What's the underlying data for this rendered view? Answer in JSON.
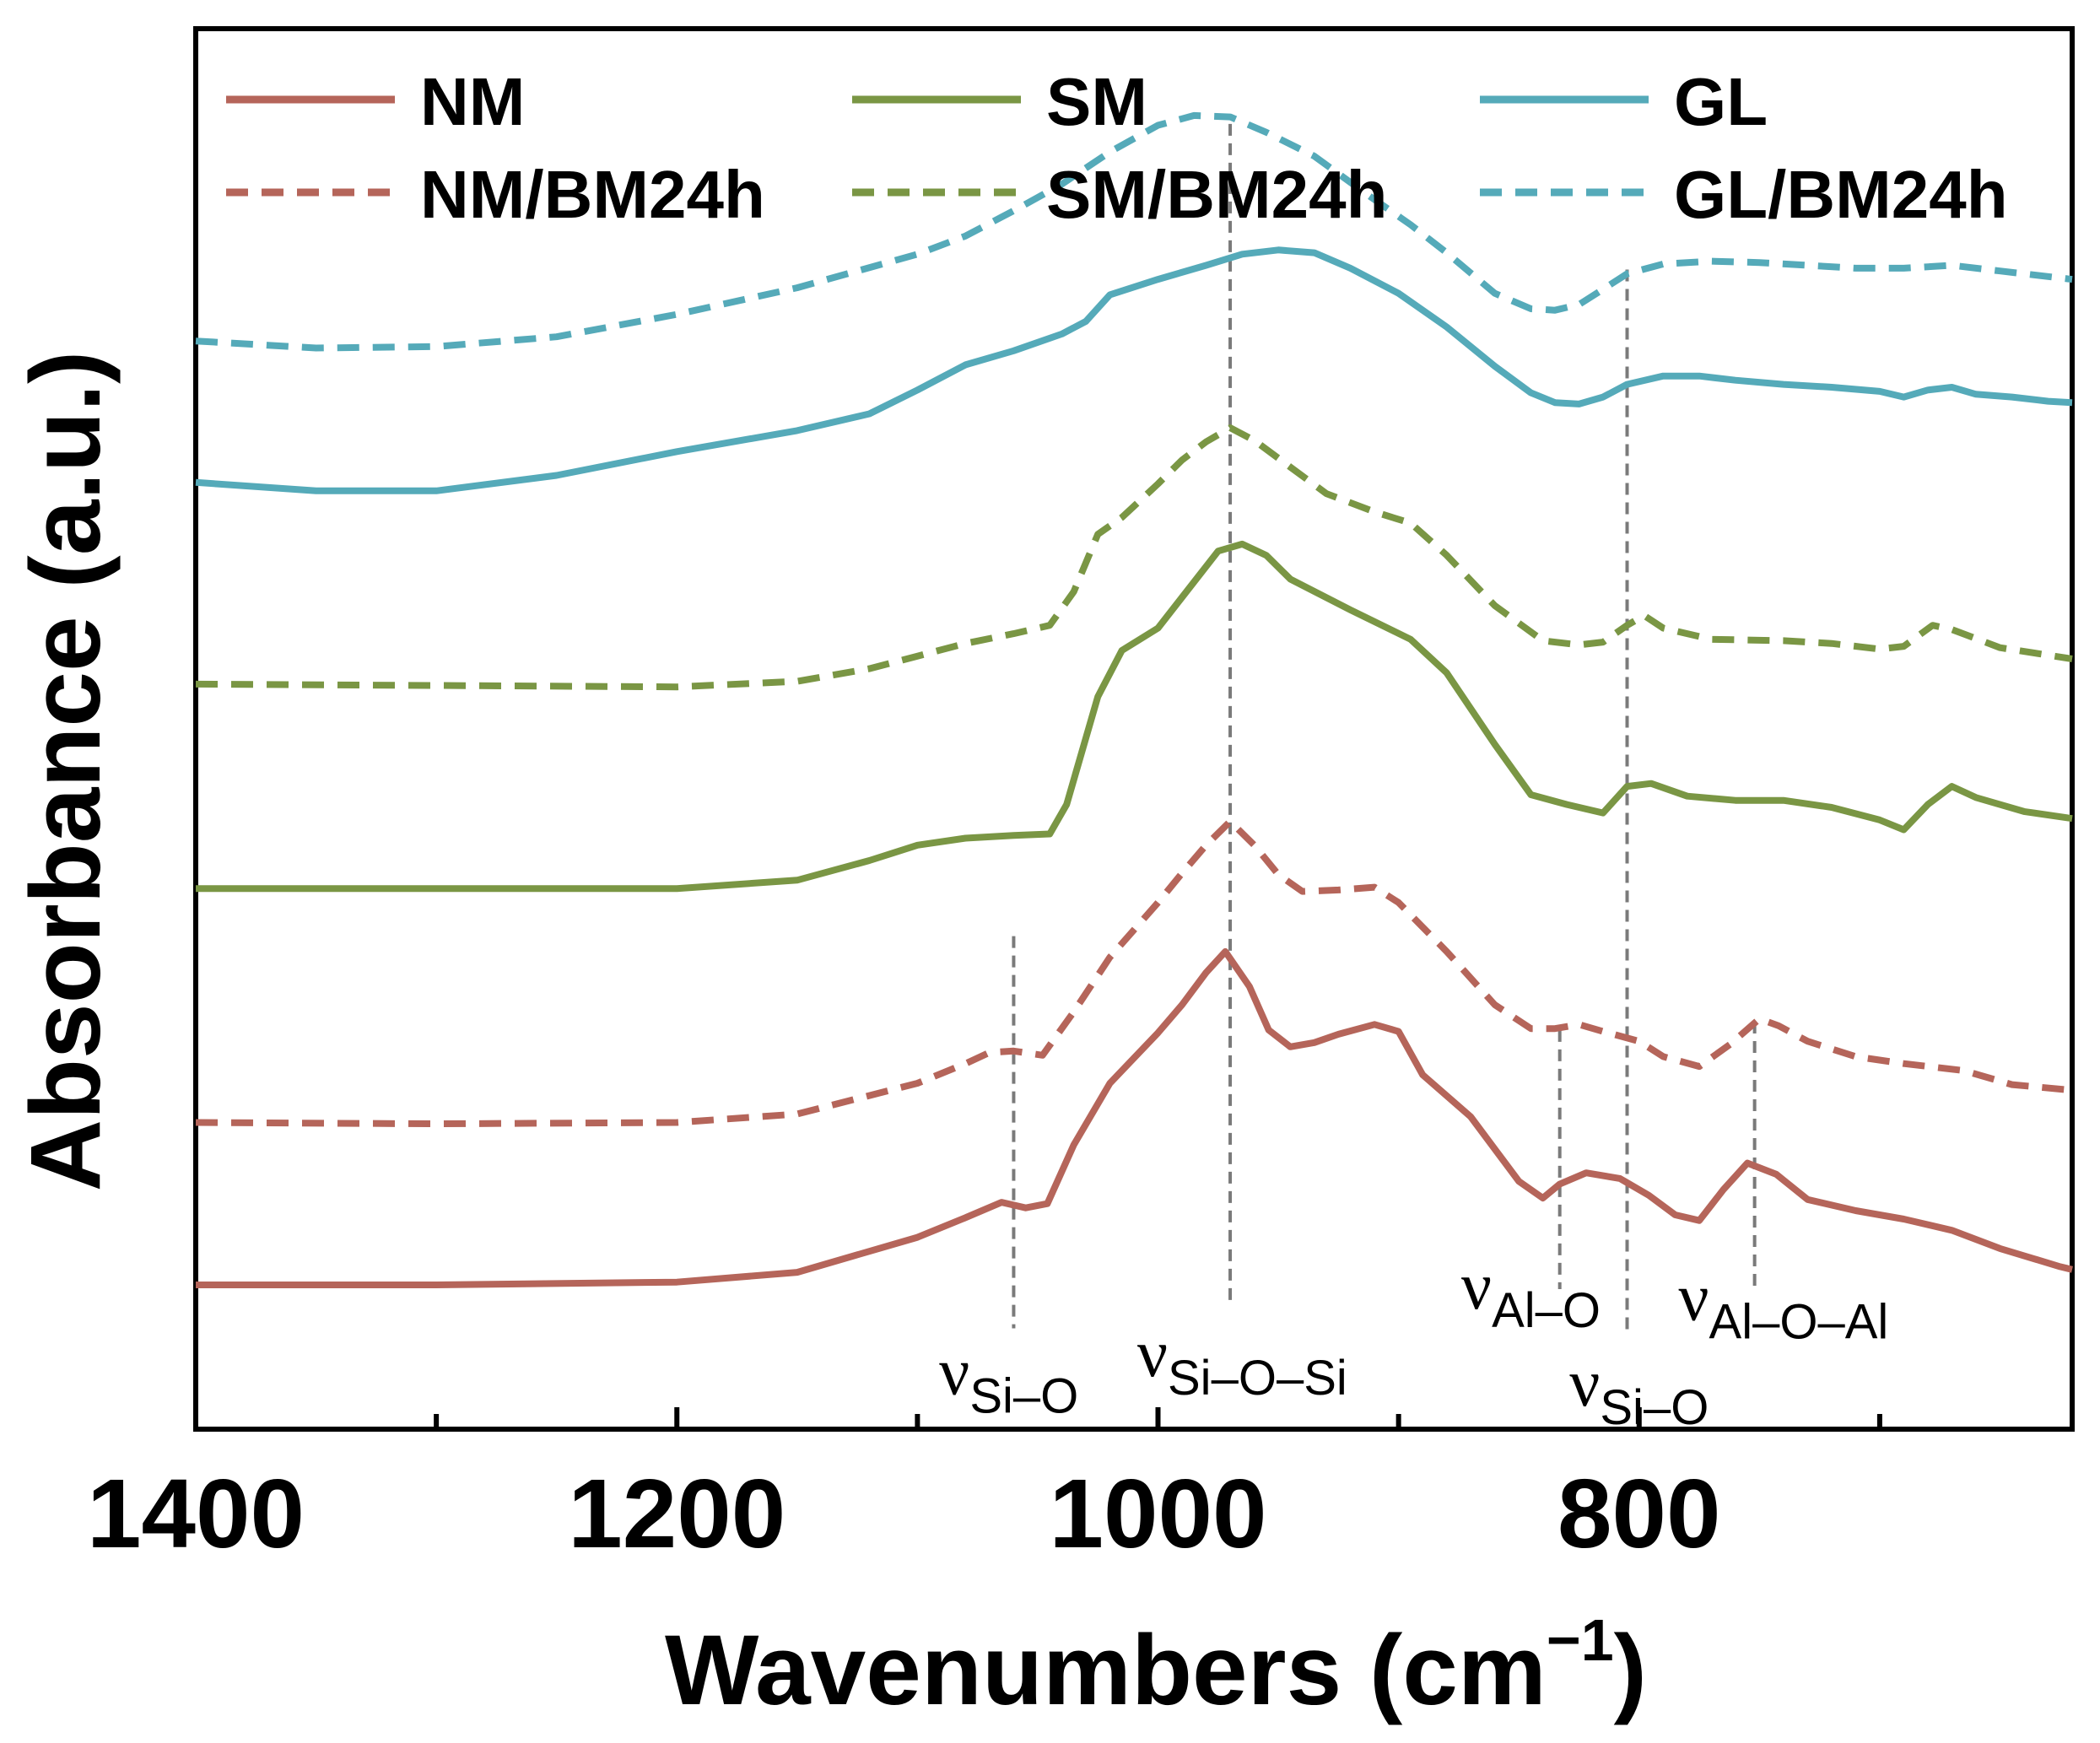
{
  "chart_data": {
    "type": "line",
    "title": "",
    "xlabel": "Wavenumbers (cm",
    "xlabel_sup": "−1",
    "xlabel_close": ")",
    "ylabel": "Absorbance (a.u.)",
    "xlim": [
      1400,
      620
    ],
    "ylim": [
      0,
      100
    ],
    "x_reversed": true,
    "x_ticks": [
      1400,
      1200,
      1000,
      800
    ],
    "x_tick_labels": [
      "1400",
      "1200",
      "1000",
      "800"
    ],
    "grid": false,
    "legend_position": "top",
    "series": [
      {
        "name": "NM",
        "color": "#b5655a",
        "style": "solid",
        "points": [
          [
            1400,
            10.3
          ],
          [
            1300,
            10.3
          ],
          [
            1200,
            10.5
          ],
          [
            1150,
            11.2
          ],
          [
            1100,
            13.7
          ],
          [
            1080,
            15.1
          ],
          [
            1065,
            16.2
          ],
          [
            1055,
            15.8
          ],
          [
            1046,
            16.1
          ],
          [
            1035,
            20.3
          ],
          [
            1020,
            24.7
          ],
          [
            1000,
            28.3
          ],
          [
            990,
            30.3
          ],
          [
            980,
            32.6
          ],
          [
            972,
            34.1
          ],
          [
            962,
            31.6
          ],
          [
            954,
            28.5
          ],
          [
            945,
            27.3
          ],
          [
            935,
            27.6
          ],
          [
            925,
            28.2
          ],
          [
            910,
            28.9
          ],
          [
            900,
            28.4
          ],
          [
            890,
            25.3
          ],
          [
            870,
            22.3
          ],
          [
            850,
            17.7
          ],
          [
            840,
            16.5
          ],
          [
            833,
            17.5
          ],
          [
            822,
            18.3
          ],
          [
            808,
            17.9
          ],
          [
            796,
            16.7
          ],
          [
            785,
            15.3
          ],
          [
            775,
            14.9
          ],
          [
            765,
            17.1
          ],
          [
            755,
            19.0
          ],
          [
            743,
            18.2
          ],
          [
            730,
            16.4
          ],
          [
            710,
            15.6
          ],
          [
            690,
            15.0
          ],
          [
            670,
            14.2
          ],
          [
            650,
            12.9
          ],
          [
            625,
            11.6
          ],
          [
            620,
            11.4
          ]
        ]
      },
      {
        "name": "NM/BM24h",
        "color": "#b5655a",
        "style": "dashed",
        "points": [
          [
            1400,
            21.9
          ],
          [
            1300,
            21.8
          ],
          [
            1200,
            21.9
          ],
          [
            1150,
            22.5
          ],
          [
            1100,
            24.7
          ],
          [
            1080,
            26.1
          ],
          [
            1070,
            26.9
          ],
          [
            1060,
            27.0
          ],
          [
            1048,
            26.7
          ],
          [
            1035,
            29.8
          ],
          [
            1020,
            33.7
          ],
          [
            1000,
            37.6
          ],
          [
            990,
            39.7
          ],
          [
            980,
            41.7
          ],
          [
            970,
            43.4
          ],
          [
            960,
            41.7
          ],
          [
            950,
            39.6
          ],
          [
            940,
            38.4
          ],
          [
            925,
            38.5
          ],
          [
            910,
            38.7
          ],
          [
            900,
            37.6
          ],
          [
            880,
            34.1
          ],
          [
            860,
            30.3
          ],
          [
            845,
            28.6
          ],
          [
            835,
            28.6
          ],
          [
            825,
            28.9
          ],
          [
            815,
            28.4
          ],
          [
            800,
            27.7
          ],
          [
            790,
            26.6
          ],
          [
            775,
            25.9
          ],
          [
            762,
            27.5
          ],
          [
            750,
            29.3
          ],
          [
            742,
            28.8
          ],
          [
            730,
            27.7
          ],
          [
            710,
            26.6
          ],
          [
            690,
            26.1
          ],
          [
            665,
            25.6
          ],
          [
            645,
            24.6
          ],
          [
            620,
            24.2
          ]
        ]
      },
      {
        "name": "SM",
        "color": "#7a9644",
        "style": "solid",
        "points": [
          [
            1400,
            38.6
          ],
          [
            1300,
            38.6
          ],
          [
            1200,
            38.6
          ],
          [
            1150,
            39.2
          ],
          [
            1120,
            40.6
          ],
          [
            1100,
            41.7
          ],
          [
            1080,
            42.2
          ],
          [
            1060,
            42.4
          ],
          [
            1045,
            42.5
          ],
          [
            1038,
            44.6
          ],
          [
            1025,
            52.3
          ],
          [
            1015,
            55.6
          ],
          [
            1000,
            57.2
          ],
          [
            990,
            59.4
          ],
          [
            975,
            62.7
          ],
          [
            965,
            63.2
          ],
          [
            955,
            62.4
          ],
          [
            945,
            60.7
          ],
          [
            920,
            58.5
          ],
          [
            895,
            56.4
          ],
          [
            880,
            54.0
          ],
          [
            860,
            48.9
          ],
          [
            845,
            45.3
          ],
          [
            830,
            44.6
          ],
          [
            815,
            44.0
          ],
          [
            805,
            45.9
          ],
          [
            795,
            46.1
          ],
          [
            780,
            45.2
          ],
          [
            760,
            44.9
          ],
          [
            740,
            44.9
          ],
          [
            720,
            44.4
          ],
          [
            700,
            43.5
          ],
          [
            690,
            42.8
          ],
          [
            680,
            44.6
          ],
          [
            670,
            45.9
          ],
          [
            660,
            45.1
          ],
          [
            640,
            44.1
          ],
          [
            620,
            43.6
          ]
        ]
      },
      {
        "name": "SM/BM24h",
        "color": "#7a9644",
        "style": "dashed",
        "points": [
          [
            1400,
            53.2
          ],
          [
            1300,
            53.1
          ],
          [
            1200,
            53.0
          ],
          [
            1150,
            53.4
          ],
          [
            1120,
            54.3
          ],
          [
            1100,
            55.2
          ],
          [
            1080,
            56.1
          ],
          [
            1060,
            56.8
          ],
          [
            1045,
            57.4
          ],
          [
            1035,
            59.8
          ],
          [
            1025,
            63.9
          ],
          [
            1015,
            65.1
          ],
          [
            1000,
            67.5
          ],
          [
            990,
            69.2
          ],
          [
            980,
            70.5
          ],
          [
            970,
            71.5
          ],
          [
            960,
            70.6
          ],
          [
            945,
            68.7
          ],
          [
            930,
            66.8
          ],
          [
            910,
            65.5
          ],
          [
            895,
            64.7
          ],
          [
            880,
            62.4
          ],
          [
            860,
            58.8
          ],
          [
            840,
            56.3
          ],
          [
            825,
            56.0
          ],
          [
            815,
            56.2
          ],
          [
            805,
            57.4
          ],
          [
            798,
            58.1
          ],
          [
            790,
            57.2
          ],
          [
            770,
            56.4
          ],
          [
            740,
            56.3
          ],
          [
            720,
            56.1
          ],
          [
            700,
            55.7
          ],
          [
            690,
            55.9
          ],
          [
            678,
            57.4
          ],
          [
            670,
            57.1
          ],
          [
            650,
            55.8
          ],
          [
            620,
            55.0
          ]
        ]
      },
      {
        "name": "GL",
        "color": "#55aab9",
        "style": "solid",
        "points": [
          [
            1400,
            67.6
          ],
          [
            1350,
            67.0
          ],
          [
            1300,
            67.0
          ],
          [
            1250,
            68.1
          ],
          [
            1200,
            69.8
          ],
          [
            1150,
            71.3
          ],
          [
            1120,
            72.5
          ],
          [
            1100,
            74.2
          ],
          [
            1080,
            76.0
          ],
          [
            1060,
            77.0
          ],
          [
            1040,
            78.2
          ],
          [
            1030,
            79.1
          ],
          [
            1020,
            81.0
          ],
          [
            1000,
            82.1
          ],
          [
            980,
            83.1
          ],
          [
            965,
            83.9
          ],
          [
            950,
            84.2
          ],
          [
            935,
            84.0
          ],
          [
            920,
            82.9
          ],
          [
            900,
            81.1
          ],
          [
            880,
            78.7
          ],
          [
            860,
            75.9
          ],
          [
            845,
            74.0
          ],
          [
            835,
            73.3
          ],
          [
            825,
            73.2
          ],
          [
            815,
            73.7
          ],
          [
            805,
            74.6
          ],
          [
            790,
            75.2
          ],
          [
            775,
            75.2
          ],
          [
            760,
            74.9
          ],
          [
            740,
            74.6
          ],
          [
            720,
            74.4
          ],
          [
            700,
            74.1
          ],
          [
            690,
            73.7
          ],
          [
            680,
            74.2
          ],
          [
            670,
            74.4
          ],
          [
            660,
            73.9
          ],
          [
            645,
            73.7
          ],
          [
            630,
            73.4
          ],
          [
            620,
            73.3
          ]
        ]
      },
      {
        "name": "GL/BM24h",
        "color": "#55aab9",
        "style": "dashed",
        "points": [
          [
            1400,
            77.7
          ],
          [
            1350,
            77.2
          ],
          [
            1300,
            77.3
          ],
          [
            1250,
            78.0
          ],
          [
            1200,
            79.6
          ],
          [
            1150,
            81.5
          ],
          [
            1100,
            83.9
          ],
          [
            1080,
            85.2
          ],
          [
            1060,
            87.0
          ],
          [
            1040,
            88.9
          ],
          [
            1020,
            91.2
          ],
          [
            1000,
            93.1
          ],
          [
            985,
            93.8
          ],
          [
            970,
            93.7
          ],
          [
            955,
            92.6
          ],
          [
            935,
            90.9
          ],
          [
            915,
            88.4
          ],
          [
            895,
            86.0
          ],
          [
            880,
            84.0
          ],
          [
            860,
            81.1
          ],
          [
            845,
            80.0
          ],
          [
            835,
            79.9
          ],
          [
            825,
            80.3
          ],
          [
            815,
            81.4
          ],
          [
            805,
            82.5
          ],
          [
            790,
            83.2
          ],
          [
            770,
            83.4
          ],
          [
            750,
            83.3
          ],
          [
            730,
            83.1
          ],
          [
            710,
            82.9
          ],
          [
            690,
            82.9
          ],
          [
            670,
            83.1
          ],
          [
            650,
            82.7
          ],
          [
            620,
            82.1
          ]
        ]
      }
    ],
    "guide_lines": [
      {
        "x": 1060,
        "y_from": 35.2,
        "y_to": 7.2
      },
      {
        "x": 970,
        "y_from": 93.2,
        "y_to": 8.7
      },
      {
        "x": 833,
        "y_from": 28.5,
        "y_to": 10.0
      },
      {
        "x": 805,
        "y_from": 82.8,
        "y_to": 6.8
      },
      {
        "x": 752,
        "y_from": 29.1,
        "y_to": 9.9
      }
    ],
    "annotations": [
      {
        "symbol": "ν",
        "sub": "Si–O",
        "x": 1062,
        "y": 2.5
      },
      {
        "symbol": "ν",
        "sub": "Si–O–Si",
        "x": 965,
        "y": 3.8
      },
      {
        "symbol": "ν",
        "sub": "Al–O",
        "x": 845,
        "y": 8.6
      },
      {
        "symbol": "ν",
        "sub": "Si–O",
        "x": 800,
        "y": 1.7
      },
      {
        "symbol": "ν",
        "sub": "Al–O–Al",
        "x": 740,
        "y": 7.8
      }
    ]
  }
}
